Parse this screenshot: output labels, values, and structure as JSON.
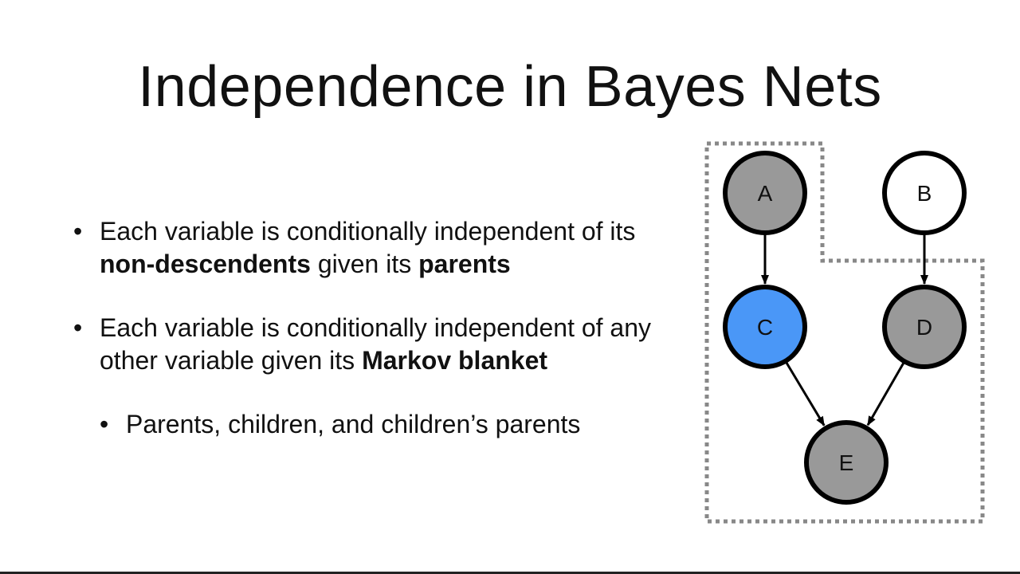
{
  "slide": {
    "title": "Independence in Bayes Nets",
    "bullets": [
      {
        "parts": [
          {
            "text": "Each variable is conditionally independent of its ",
            "bold": false
          },
          {
            "text": "non-descendents",
            "bold": true
          },
          {
            "text": " given its ",
            "bold": false
          },
          {
            "text": "parents",
            "bold": true
          }
        ]
      },
      {
        "parts": [
          {
            "text": "Each variable is conditionally independent of any other variable given its ",
            "bold": false
          },
          {
            "text": "Markov blanket",
            "bold": true
          }
        ]
      }
    ],
    "sub_bullets": [
      {
        "text": "Parents, children, and children’s parents"
      }
    ],
    "bullet_glyph": "•"
  },
  "diagram": {
    "nodes": [
      {
        "id": "A",
        "label": "A",
        "fill": "#999999"
      },
      {
        "id": "B",
        "label": "B",
        "fill": "#ffffff"
      },
      {
        "id": "C",
        "label": "C",
        "fill": "#4a97f7"
      },
      {
        "id": "D",
        "label": "D",
        "fill": "#999999"
      },
      {
        "id": "E",
        "label": "E",
        "fill": "#999999"
      }
    ],
    "edges": [
      {
        "from": "A",
        "to": "C"
      },
      {
        "from": "B",
        "to": "D"
      },
      {
        "from": "C",
        "to": "E"
      },
      {
        "from": "D",
        "to": "E"
      }
    ],
    "colors": {
      "stroke": "#000000",
      "blanket": "#888888"
    }
  }
}
